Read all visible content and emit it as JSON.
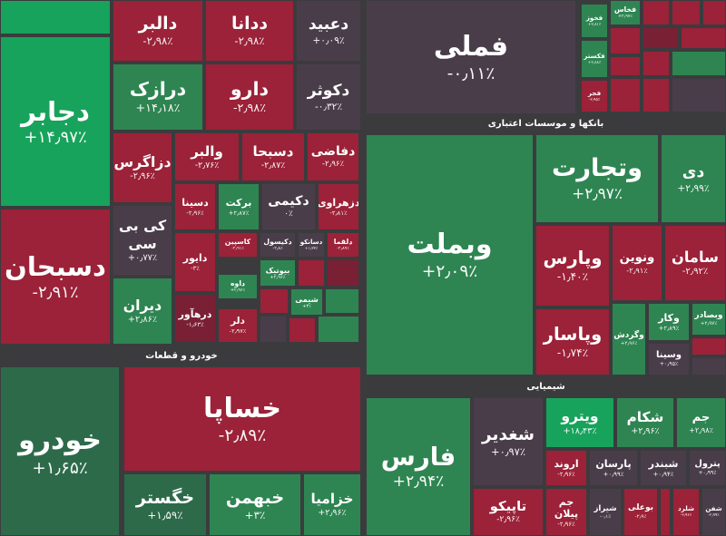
{
  "sector_labels": [
    "خودرو و قطعات",
    "بانکها و موسسات اعتباری",
    "شیمیایی"
  ],
  "tiles": [
    {
      "name": "دجابر",
      "change": "+۱۴٫۹۷٪"
    },
    {
      "name": "دالبر",
      "change": "-۲٫۹۸٪"
    },
    {
      "name": "ددانا",
      "change": "-۲٫۹۸٪"
    },
    {
      "name": "دعبید",
      "change": "+۰٫۰۹٪"
    },
    {
      "name": "درازک",
      "change": "+۱۴٫۱۸٪"
    },
    {
      "name": "دارو",
      "change": "-۲٫۹۸٪"
    },
    {
      "name": "دکوثر",
      "change": "-۰٫۳۲٪"
    },
    {
      "name": "دسبحان",
      "change": "-۲٫۹۱٪"
    },
    {
      "name": "دزاگرس",
      "change": "-۲٫۹۶٪"
    },
    {
      "name": "والبر",
      "change": "-۲٫۷۶٪"
    },
    {
      "name": "دسبحا",
      "change": "-۲٫۸۷٪"
    },
    {
      "name": "دفاضی",
      "change": "-۲٫۹۶٪"
    },
    {
      "name": "کی بی سی",
      "change": "+۰٫۷۷٪"
    },
    {
      "name": "دسینا",
      "change": "-۲٫۹۶٪"
    },
    {
      "name": "برکت",
      "change": "+۲٫۸۷٪"
    },
    {
      "name": "دکیمی",
      "change": "۰٪"
    },
    {
      "name": "دزهراوی",
      "change": "-۲٫۸۱٪"
    },
    {
      "name": "دایور",
      "change": "-۳٪"
    },
    {
      "name": "کاسپین",
      "change": "-۲٫۹۱٪"
    },
    {
      "name": "دکیسول",
      "change": "-۲٫۸٪"
    },
    {
      "name": "دسانکو",
      "change": "+۱٫۳۳٪"
    },
    {
      "name": "دلقما",
      "change": "-۲٫۸۹٪"
    },
    {
      "name": "دیران",
      "change": "+۲٫۸۶٪"
    },
    {
      "name": "درهآور",
      "change": "-۱٫۶۳٪"
    },
    {
      "name": "داوه",
      "change": "+۲٫۹۶٪"
    },
    {
      "name": "بیوتیک",
      "change": "+۲٫۹۶٪"
    },
    {
      "name": "دلر",
      "change": "-۲٫۹۷٪"
    },
    {
      "name": "شیمی",
      "change": "+۳٪"
    },
    {
      "name": "خودرو",
      "change": "+۱٫۶۵٪"
    },
    {
      "name": "خساپا",
      "change": "-۲٫۸۹٪"
    },
    {
      "name": "خگستر",
      "change": "+۱٫۵۹٪"
    },
    {
      "name": "خبهمن",
      "change": "+۳٪"
    },
    {
      "name": "خزامیا",
      "change": "+۲٫۹۶٪"
    },
    {
      "name": "فملی",
      "change": "-۰٫۱۱٪"
    },
    {
      "name": "فخوز",
      "change": "+۲٫۸۱٪"
    },
    {
      "name": "فکستر",
      "change": "+۲٫۸۸٪"
    },
    {
      "name": "فجر",
      "change": "-۲٫۹۵٪"
    },
    {
      "name": "فخاس",
      "change": "+۲٫۹۷٪"
    },
    {
      "name": "وبملت",
      "change": "+۲٫۰۹٪"
    },
    {
      "name": "وتجارت",
      "change": "+۲٫۹۷٪"
    },
    {
      "name": "دی",
      "change": "+۲٫۹۹٪"
    },
    {
      "name": "وپارس",
      "change": "-۱٫۴۰٪"
    },
    {
      "name": "ونوین",
      "change": "-۲٫۹۱٪"
    },
    {
      "name": "سامان",
      "change": "-۲٫۹۲٪"
    },
    {
      "name": "وپاسار",
      "change": "-۱٫۷۴٪"
    },
    {
      "name": "وگردش",
      "change": "+۲٫۹۶٪"
    },
    {
      "name": "وکار",
      "change": "+۲٫۸۹٪"
    },
    {
      "name": "وسینا",
      "change": "+۰٫۹۵٪"
    },
    {
      "name": "وبصادر",
      "change": "+۲٫۹۷٪"
    },
    {
      "name": "فارس",
      "change": "+۲٫۹۴٪"
    },
    {
      "name": "شغدیر",
      "change": "+۰٫۹۷٪"
    },
    {
      "name": "تاپیکو",
      "change": "-۲٫۹۶٪"
    },
    {
      "name": "ویترو",
      "change": "+۱۸٫۴۳٪"
    },
    {
      "name": "شکام",
      "change": "+۲٫۹۶٪"
    },
    {
      "name": "جم",
      "change": "+۲٫۹۸٪"
    },
    {
      "name": "اروند",
      "change": "-۲٫۹۶٪"
    },
    {
      "name": "پارسان",
      "change": "+۰٫۹۹٪"
    },
    {
      "name": "شبندر",
      "change": "+۰٫۹۴٪"
    },
    {
      "name": "پترول",
      "change": "+۰٫۹۹٪"
    },
    {
      "name": "جم پیلان",
      "change": "-۲٫۹۶٪"
    },
    {
      "name": "شیراز",
      "change": "-۰٫۱٪"
    },
    {
      "name": "بوعلی",
      "change": "-۲٫۹٪"
    },
    {
      "name": "شلرد",
      "change": "-۲٫۹۶٪"
    },
    {
      "name": "شفن",
      "change": "-۲٫۹۹٪"
    }
  ]
}
